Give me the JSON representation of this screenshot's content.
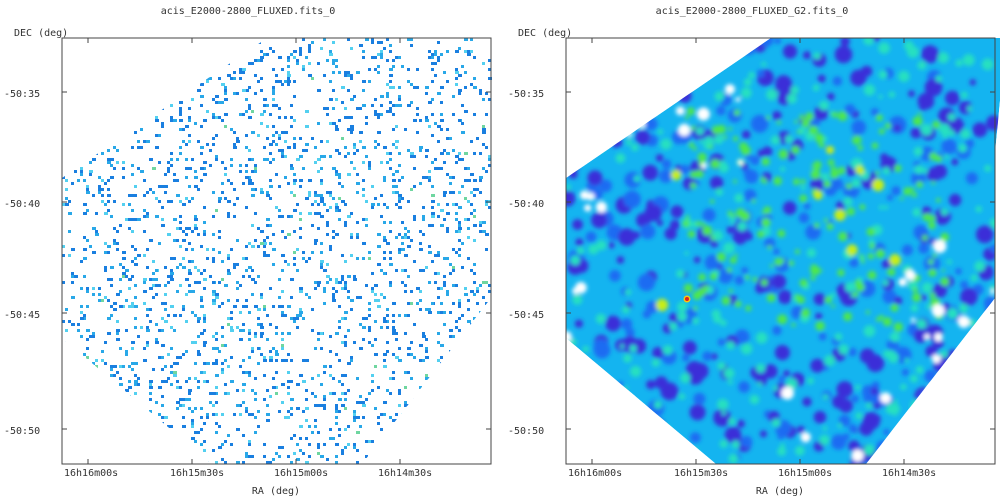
{
  "chart_data": [
    {
      "type": "heatmap",
      "title": "acis_E2000-2800_FLUXED.fits_0",
      "xlabel": "RA (deg)",
      "ylabel": "DEC (deg)",
      "x_ticks": [
        "16h16m00s",
        "16h15m30s",
        "16h15m00s",
        "16h14m30s"
      ],
      "y_ticks": [
        "-50:35",
        "-50:40",
        "-50:45",
        "-50:50"
      ],
      "rendering": "sparse raw counts image",
      "colormap": [
        "#1a7fe0",
        "#29a8e8",
        "#53d0f0",
        "#6fd6a0"
      ],
      "grid": false
    },
    {
      "type": "heatmap",
      "title": "acis_E2000-2800_FLUXED_G2.fits_0",
      "xlabel": "RA (deg)",
      "ylabel": "DEC (deg)",
      "x_ticks": [
        "16h16m00s",
        "16h15m30s",
        "16h15m00s",
        "16h14m30s"
      ],
      "y_ticks": [
        "-50:35",
        "-50:40",
        "-50:45",
        "-50:50"
      ],
      "rendering": "smoothed image",
      "colormap": [
        "#3a2dd8",
        "#1f6cf2",
        "#14b4f0",
        "#25e0c0",
        "#4fe84a",
        "#c8ee18",
        "#f6c810",
        "#e02020"
      ],
      "grid": false
    }
  ]
}
